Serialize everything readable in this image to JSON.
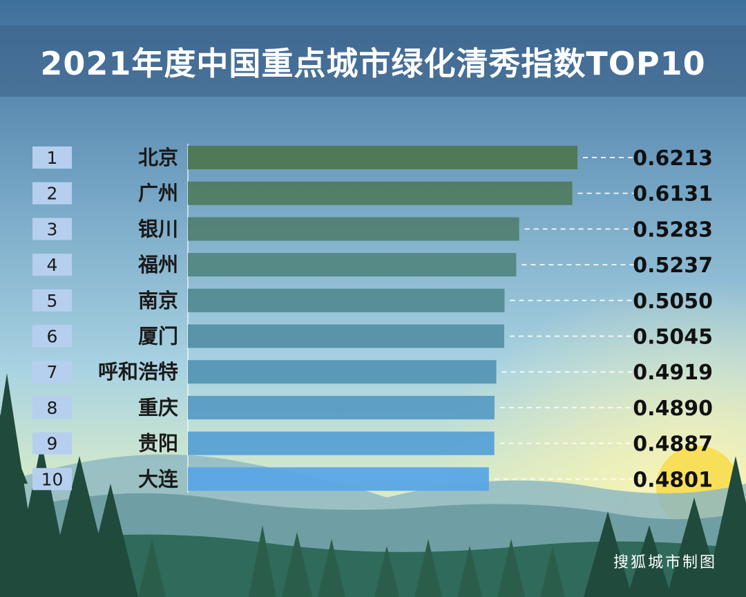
{
  "title": "2021年度中国重点城市绿化清秀指数TOP10",
  "footer": "搜狐城市制图",
  "colors": {
    "rank_box": "#b6cfee",
    "bar_top": "#4f7752",
    "bar_bottom": "#5aa6e6",
    "value_text": "#111111",
    "label_text": "#1a1a1a"
  },
  "chart_data": {
    "type": "bar",
    "orientation": "horizontal",
    "title": "2021年度中国重点城市绿化清秀指数TOP10",
    "categories": [
      "北京",
      "广州",
      "银川",
      "福州",
      "南京",
      "厦门",
      "呼和浩特",
      "重庆",
      "贵阳",
      "大连"
    ],
    "ranks": [
      "1",
      "2",
      "3",
      "4",
      "5",
      "6",
      "7",
      "8",
      "9",
      "10"
    ],
    "values": [
      0.6213,
      0.6131,
      0.5283,
      0.5237,
      0.505,
      0.5045,
      0.4919,
      0.489,
      0.4887,
      0.4801
    ],
    "value_labels": [
      "0.6213",
      "0.6131",
      "0.5283",
      "0.5237",
      "0.5050",
      "0.5045",
      "0.4919",
      "0.4890",
      "0.4887",
      "0.4801"
    ],
    "xlim": [
      0,
      0.6213
    ],
    "grid": false,
    "legend": "none"
  }
}
